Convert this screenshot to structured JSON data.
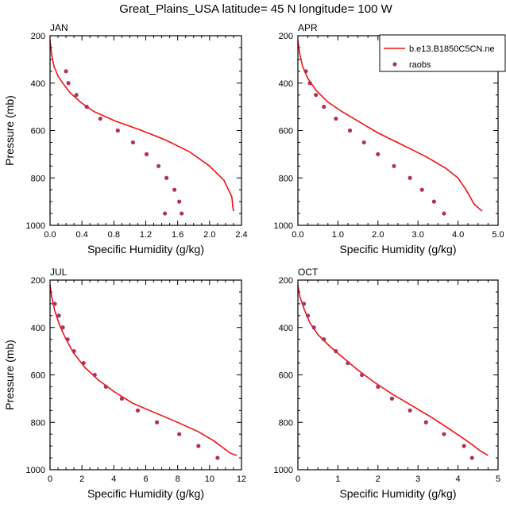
{
  "figure_title": "Great_Plains_USA  latitude= 45 N longitude= 100 W",
  "legend": {
    "line_label": "b.e13.B1850C5CN.ne",
    "marker_label": "raobs",
    "line_color": "#ee1111",
    "marker_color": "#b03060"
  },
  "chart_data": [
    {
      "type": "line",
      "title": "JAN",
      "xlabel": "Specific Humidity (g/kg)",
      "ylabel": "Pressure (mb)",
      "xlim": [
        0,
        2.4
      ],
      "ylim": [
        200,
        1000
      ],
      "y_reversed": true,
      "xticks": [
        "0.0",
        "0.4",
        "0.8",
        "1.2",
        "1.6",
        "2.0",
        "2.4"
      ],
      "yticks": [
        "200",
        "400",
        "600",
        "800",
        "1000"
      ],
      "series": [
        {
          "name": "b.e13.B1850C5CN.ne",
          "kind": "line",
          "x": [
            0.0,
            0.02,
            0.05,
            0.1,
            0.16,
            0.25,
            0.38,
            0.55,
            0.82,
            1.15,
            1.45,
            1.75,
            2.0,
            2.18,
            2.28,
            2.29,
            2.3
          ],
          "y": [
            220,
            280,
            330,
            370,
            400,
            440,
            480,
            520,
            560,
            600,
            640,
            690,
            750,
            810,
            880,
            920,
            940
          ]
        },
        {
          "name": "raobs",
          "kind": "markers",
          "x": [
            0.2,
            0.23,
            0.33,
            0.46,
            0.63,
            0.85,
            1.04,
            1.21,
            1.36,
            1.46,
            1.56,
            1.62,
            1.65,
            1.44
          ],
          "y": [
            350,
            400,
            450,
            500,
            550,
            600,
            650,
            700,
            750,
            800,
            850,
            900,
            950,
            950
          ]
        }
      ]
    },
    {
      "type": "line",
      "title": "APR",
      "xlabel": "Specific Humidity (g/kg)",
      "ylabel": "",
      "xlim": [
        0,
        5
      ],
      "ylim": [
        200,
        1000
      ],
      "y_reversed": true,
      "xticks": [
        "0.0",
        "1.0",
        "2.0",
        "3.0",
        "4.0",
        "5.0"
      ],
      "yticks": [
        "200",
        "400",
        "600",
        "800",
        "1000"
      ],
      "series": [
        {
          "name": "b.e13.B1850C5CN.ne",
          "kind": "line",
          "x": [
            0.0,
            0.05,
            0.12,
            0.25,
            0.45,
            0.75,
            1.1,
            1.5,
            2.0,
            2.6,
            3.2,
            3.7,
            4.0,
            4.2,
            4.4,
            4.6
          ],
          "y": [
            220,
            280,
            330,
            380,
            430,
            480,
            520,
            560,
            610,
            660,
            710,
            760,
            800,
            850,
            910,
            940
          ]
        },
        {
          "name": "raobs",
          "kind": "markers",
          "x": [
            0.2,
            0.3,
            0.45,
            0.65,
            0.95,
            1.3,
            1.65,
            2.0,
            2.4,
            2.8,
            3.1,
            3.4,
            3.65
          ],
          "y": [
            350,
            400,
            450,
            500,
            550,
            600,
            650,
            700,
            750,
            800,
            850,
            900,
            950
          ]
        }
      ]
    },
    {
      "type": "line",
      "title": "JUL",
      "xlabel": "Specific Humidity (g/kg)",
      "ylabel": "Pressure (mb)",
      "xlim": [
        0,
        12
      ],
      "ylim": [
        200,
        1000
      ],
      "y_reversed": true,
      "xticks": [
        "0",
        "2",
        "4",
        "6",
        "8",
        "10",
        "12"
      ],
      "yticks": [
        "200",
        "400",
        "600",
        "800",
        "1000"
      ],
      "series": [
        {
          "name": "b.e13.B1850C5CN.ne",
          "kind": "line",
          "x": [
            0.0,
            0.1,
            0.3,
            0.6,
            1.0,
            1.5,
            2.2,
            3.0,
            4.0,
            5.2,
            6.6,
            8.0,
            9.3,
            10.3,
            10.9,
            11.3,
            11.7
          ],
          "y": [
            220,
            270,
            330,
            390,
            450,
            510,
            570,
            620,
            670,
            720,
            760,
            800,
            840,
            880,
            910,
            930,
            940
          ]
        },
        {
          "name": "raobs",
          "kind": "markers",
          "x": [
            0.3,
            0.55,
            0.8,
            1.1,
            1.5,
            2.1,
            2.8,
            3.5,
            4.5,
            5.5,
            6.7,
            8.1,
            9.3,
            10.5
          ],
          "y": [
            300,
            350,
            400,
            450,
            500,
            550,
            600,
            650,
            700,
            750,
            800,
            850,
            900,
            950
          ]
        }
      ]
    },
    {
      "type": "line",
      "title": "OCT",
      "xlabel": "Specific Humidity (g/kg)",
      "ylabel": "",
      "xlim": [
        0,
        5
      ],
      "ylim": [
        200,
        1000
      ],
      "y_reversed": true,
      "xticks": [
        "0",
        "1",
        "2",
        "3",
        "4",
        "5"
      ],
      "yticks": [
        "200",
        "400",
        "600",
        "800",
        "1000"
      ],
      "series": [
        {
          "name": "b.e13.B1850C5CN.ne",
          "kind": "line",
          "x": [
            0.0,
            0.05,
            0.15,
            0.3,
            0.5,
            0.8,
            1.15,
            1.5,
            1.9,
            2.35,
            2.85,
            3.35,
            3.8,
            4.15,
            4.4,
            4.55,
            4.75
          ],
          "y": [
            220,
            270,
            320,
            380,
            430,
            480,
            530,
            580,
            630,
            680,
            730,
            780,
            830,
            870,
            900,
            920,
            940
          ]
        },
        {
          "name": "raobs",
          "kind": "markers",
          "x": [
            0.15,
            0.25,
            0.4,
            0.65,
            0.95,
            1.25,
            1.6,
            2.0,
            2.35,
            2.8,
            3.2,
            3.65,
            4.15,
            4.35
          ],
          "y": [
            300,
            350,
            400,
            450,
            500,
            550,
            600,
            650,
            700,
            750,
            800,
            850,
            900,
            950
          ]
        }
      ]
    }
  ]
}
